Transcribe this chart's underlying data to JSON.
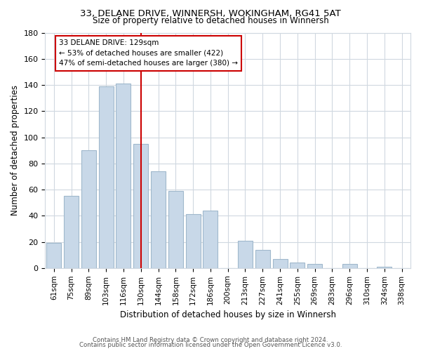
{
  "title1": "33, DELANE DRIVE, WINNERSH, WOKINGHAM, RG41 5AT",
  "title2": "Size of property relative to detached houses in Winnersh",
  "xlabel": "Distribution of detached houses by size in Winnersh",
  "ylabel": "Number of detached properties",
  "categories": [
    "61sqm",
    "75sqm",
    "89sqm",
    "103sqm",
    "116sqm",
    "130sqm",
    "144sqm",
    "158sqm",
    "172sqm",
    "186sqm",
    "200sqm",
    "213sqm",
    "227sqm",
    "241sqm",
    "255sqm",
    "269sqm",
    "283sqm",
    "296sqm",
    "310sqm",
    "324sqm",
    "338sqm"
  ],
  "values": [
    19,
    55,
    90,
    139,
    141,
    95,
    74,
    59,
    41,
    44,
    0,
    21,
    14,
    7,
    4,
    3,
    0,
    3,
    0,
    1,
    0
  ],
  "bar_color": "#c8d8e8",
  "bar_edge_color": "#a0b8cc",
  "annotation_title": "33 DELANE DRIVE: 129sqm",
  "annotation_line1": "← 53% of detached houses are smaller (422)",
  "annotation_line2": "47% of semi-detached houses are larger (380) →",
  "annotation_box_color": "#ffffff",
  "annotation_box_edge": "#cc0000",
  "vline_color": "#cc0000",
  "vline_pos": 5.0,
  "ylim": [
    0,
    180
  ],
  "yticks": [
    0,
    20,
    40,
    60,
    80,
    100,
    120,
    140,
    160,
    180
  ],
  "footer1": "Contains HM Land Registry data © Crown copyright and database right 2024.",
  "footer2": "Contains public sector information licensed under the Open Government Licence v3.0.",
  "bg_color": "#ffffff",
  "grid_color": "#d0d8e0"
}
